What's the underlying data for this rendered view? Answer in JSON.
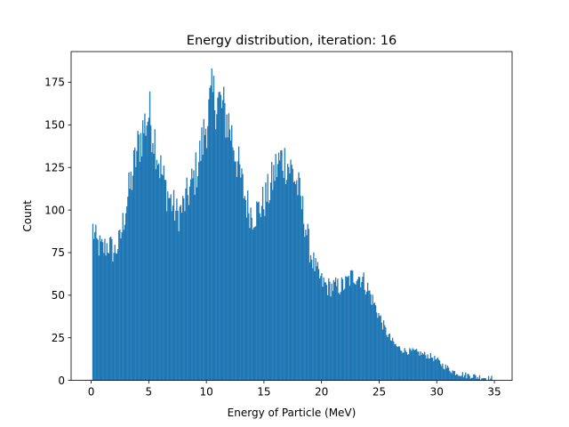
{
  "chart_data": {
    "type": "bar",
    "title": "Energy distribution, iteration: 16",
    "xlabel": "Energy of Particle (MeV)",
    "ylabel": "Count",
    "xlim": [
      -1.74,
      36.54
    ],
    "ylim": [
      0,
      193
    ],
    "xticks": [
      0,
      5,
      10,
      15,
      20,
      25,
      30,
      35
    ],
    "yticks": [
      0,
      25,
      50,
      75,
      100,
      125,
      150,
      175
    ],
    "grid": false,
    "legend": "none",
    "bar_color": "#1f77b4",
    "bin_range": [
      0.1,
      34.8
    ],
    "bin_count": 400,
    "envelope_points": [
      [
        0.1,
        90
      ],
      [
        0.5,
        80
      ],
      [
        1.0,
        77
      ],
      [
        1.5,
        80
      ],
      [
        2.0,
        75
      ],
      [
        2.5,
        82
      ],
      [
        3.0,
        102
      ],
      [
        3.5,
        118
      ],
      [
        4.0,
        135
      ],
      [
        4.5,
        147
      ],
      [
        5.0,
        157
      ],
      [
        5.5,
        143
      ],
      [
        6.0,
        125
      ],
      [
        6.5,
        112
      ],
      [
        7.0,
        104
      ],
      [
        7.5,
        97
      ],
      [
        8.0,
        102
      ],
      [
        8.5,
        111
      ],
      [
        9.0,
        120
      ],
      [
        9.5,
        134
      ],
      [
        10.0,
        152
      ],
      [
        10.5,
        166
      ],
      [
        11.0,
        165
      ],
      [
        11.5,
        158
      ],
      [
        12.0,
        150
      ],
      [
        12.5,
        135
      ],
      [
        13.0,
        118
      ],
      [
        13.5,
        104
      ],
      [
        14.0,
        97
      ],
      [
        14.5,
        100
      ],
      [
        15.0,
        105
      ],
      [
        15.5,
        112
      ],
      [
        16.0,
        124
      ],
      [
        16.5,
        130
      ],
      [
        17.0,
        128
      ],
      [
        17.5,
        122
      ],
      [
        18.0,
        112
      ],
      [
        18.5,
        95
      ],
      [
        19.0,
        76
      ],
      [
        19.5,
        65
      ],
      [
        20.0,
        58
      ],
      [
        20.5,
        55
      ],
      [
        21.0,
        55
      ],
      [
        21.5,
        55
      ],
      [
        22.0,
        56
      ],
      [
        22.5,
        60
      ],
      [
        23.0,
        62
      ],
      [
        23.5,
        60
      ],
      [
        24.0,
        54
      ],
      [
        24.5,
        46
      ],
      [
        25.0,
        38
      ],
      [
        25.5,
        30
      ],
      [
        26.0,
        24
      ],
      [
        26.5,
        20
      ],
      [
        27.0,
        18
      ],
      [
        27.5,
        17
      ],
      [
        28.0,
        17
      ],
      [
        28.5,
        16
      ],
      [
        29.0,
        15
      ],
      [
        29.5,
        14
      ],
      [
        30.0,
        12
      ],
      [
        30.5,
        9
      ],
      [
        31.0,
        7
      ],
      [
        31.5,
        5
      ],
      [
        32.0,
        4
      ],
      [
        32.5,
        3
      ],
      [
        33.0,
        3
      ],
      [
        33.5,
        2
      ],
      [
        34.0,
        2
      ],
      [
        34.5,
        1
      ],
      [
        34.8,
        1
      ]
    ]
  }
}
